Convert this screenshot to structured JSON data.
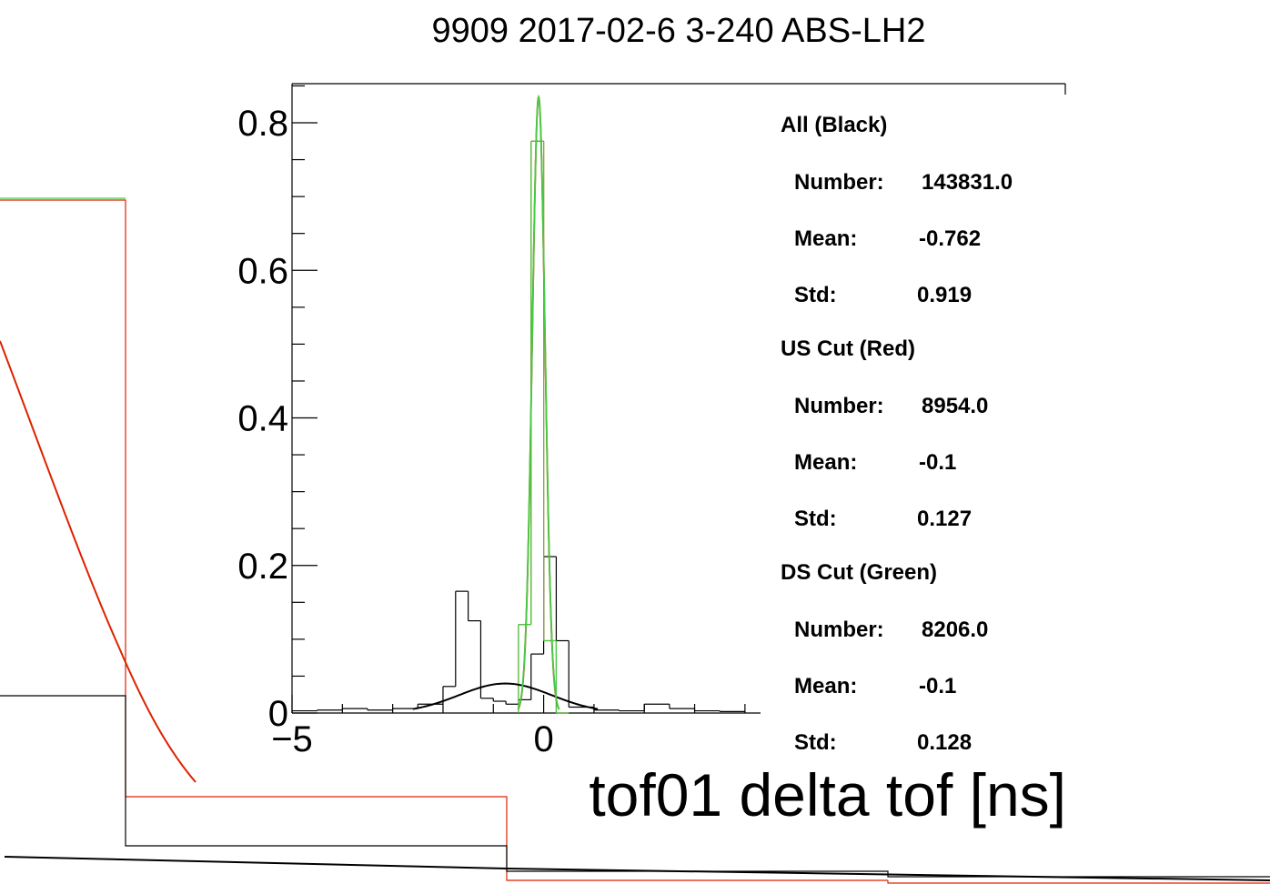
{
  "chart_data": {
    "type": "histogram",
    "title": "9909 2017-02-6 3-240 ABS-LH2",
    "xlabel": "tof01 delta tof [ns]",
    "ylabel": "",
    "xlim": [
      -5,
      4
    ],
    "ylim": [
      0,
      0.8
    ],
    "x_ticks": [
      "−5",
      "0"
    ],
    "y_ticks": [
      "0",
      "0.2",
      "0.4",
      "0.6",
      "0.8"
    ],
    "series": [
      {
        "name": "All (Black)",
        "color": "#000000",
        "bin_edges": [
          -5,
          -4.5,
          -4,
          -3.5,
          -3,
          -2.5,
          -2,
          -1.75,
          -1.5,
          -1.25,
          -1,
          -0.75,
          -0.5,
          -0.25,
          0,
          0.25,
          0.5,
          1,
          1.5,
          2,
          2.5,
          3,
          3.5,
          4
        ],
        "values": [
          0.003,
          0.004,
          0.006,
          0.004,
          0.006,
          0.012,
          0.036,
          0.165,
          0.125,
          0.02,
          0.016,
          0.012,
          0.018,
          0.08,
          0.212,
          0.098,
          0.008,
          0.004,
          0.003,
          0.012,
          0.006,
          0.003,
          0.002
        ],
        "fit": {
          "mean": -0.762,
          "std": 0.919,
          "peak": 0.04
        }
      },
      {
        "name": "US Cut (Red)",
        "color": "#dd2200",
        "bin_edges": [
          -0.5,
          -0.25,
          0,
          0.25,
          0.5
        ],
        "values": [
          0.12,
          0.775,
          0.098,
          0.0
        ],
        "fit": {
          "mean": -0.1,
          "std": 0.127,
          "peak": 0.835
        }
      },
      {
        "name": "DS Cut (Green)",
        "color": "#44cc44",
        "bin_edges": [
          -0.5,
          -0.25,
          0,
          0.25,
          0.5
        ],
        "values": [
          0.12,
          0.775,
          0.098,
          0.0
        ],
        "fit": {
          "mean": -0.1,
          "std": 0.128,
          "peak": 0.835
        }
      }
    ]
  },
  "stats": {
    "all": {
      "header": "All (Black)",
      "number_label": "Number:",
      "number_value": "143831.0",
      "mean_label": "Mean:",
      "mean_value": "-0.762",
      "std_label": "Std:",
      "std_value": "0.919"
    },
    "us": {
      "header": "US Cut (Red)",
      "number_label": "Number:",
      "number_value": "8954.0",
      "mean_label": "Mean:",
      "mean_value": "-0.1",
      "std_label": "Std:",
      "std_value": "0.127"
    },
    "ds": {
      "header": "DS Cut (Green)",
      "number_label": "Number:",
      "number_value": "8206.0",
      "mean_label": "Mean:",
      "mean_value": "-0.1",
      "std_label": "Std:",
      "std_value": "0.128"
    }
  },
  "colors": {
    "black": "#000000",
    "red": "#dd2200",
    "green": "#44cc44"
  }
}
